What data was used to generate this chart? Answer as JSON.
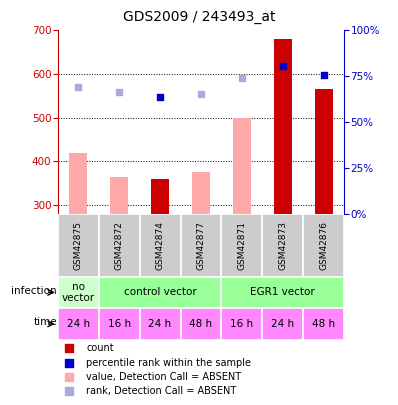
{
  "title": "GDS2009 / 243493_at",
  "samples": [
    "GSM42875",
    "GSM42872",
    "GSM42874",
    "GSM42877",
    "GSM42871",
    "GSM42873",
    "GSM42876"
  ],
  "count_values": [
    null,
    null,
    360,
    null,
    null,
    680,
    565
  ],
  "count_absent": [
    420,
    365,
    null,
    375,
    500,
    null,
    null
  ],
  "rank_values": [
    null,
    null,
    548,
    null,
    null,
    618,
    598
  ],
  "rank_absent": [
    570,
    558,
    null,
    554,
    590,
    null,
    null
  ],
  "ylim_left": [
    280,
    700
  ],
  "yticks_left": [
    300,
    400,
    500,
    600,
    700
  ],
  "yticks_right": [
    0,
    25,
    50,
    75,
    100
  ],
  "time_labels": [
    "24 h",
    "16 h",
    "24 h",
    "48 h",
    "16 h",
    "24 h",
    "48 h"
  ],
  "time_color": "#ff88ff",
  "bar_width": 0.45,
  "color_count": "#cc0000",
  "color_count_absent": "#ffaaaa",
  "color_rank": "#0000cc",
  "color_rank_absent": "#aaaadd",
  "left_tick_color": "#cc0000",
  "right_tick_color": "#0000cc",
  "sample_bg_color": "#cccccc",
  "no_vector_color": "#ccffcc",
  "cv_color": "#99ff99",
  "egr1_color": "#99ff99"
}
